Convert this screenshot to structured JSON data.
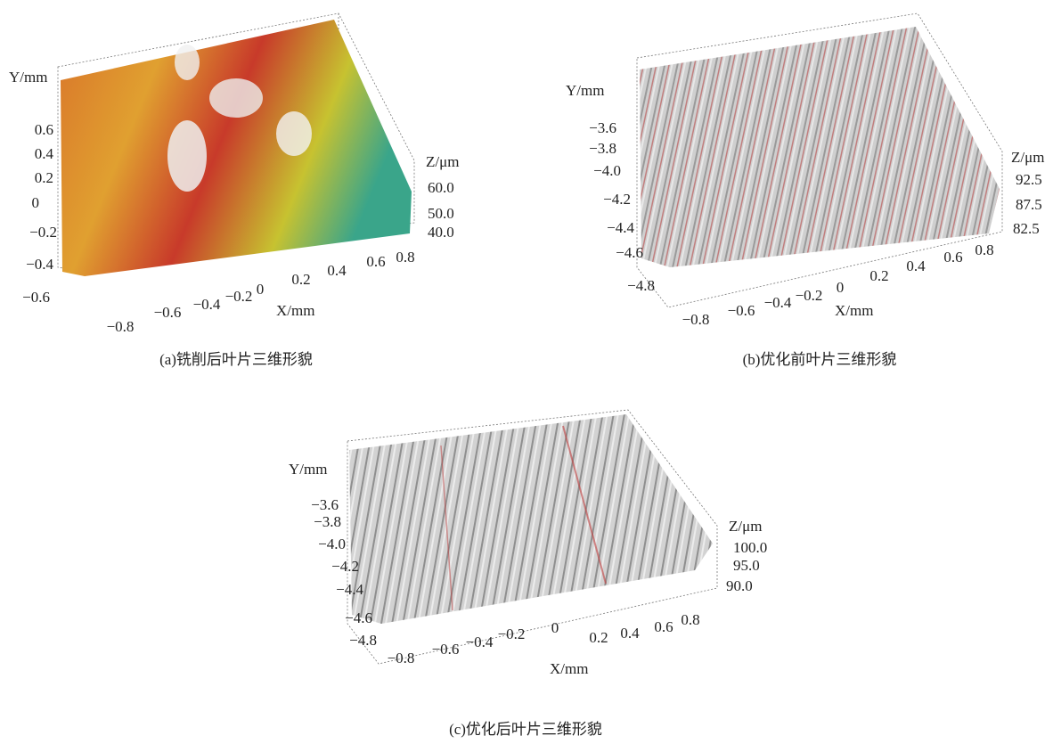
{
  "panels": [
    {
      "caption": "(a)铣削后叶片三维形貌",
      "y_axis": {
        "label": "Y/mm",
        "ticks": [
          "0.6",
          "0.4",
          "0.2",
          "0",
          "−0.2",
          "−0.4",
          "−0.6"
        ]
      },
      "x_axis": {
        "label": "X/mm",
        "ticks": [
          "−0.8",
          "−0.6",
          "−0.4",
          "−0.2",
          "0",
          "0.2",
          "0.4",
          "0.6",
          "0.8"
        ]
      },
      "z_axis": {
        "label": "Z/μm",
        "ticks": [
          "60.0",
          "50.0",
          "40.0"
        ]
      }
    },
    {
      "caption": "(b)优化前叶片三维形貌",
      "y_axis": {
        "label": "Y/mm",
        "ticks": [
          "−3.6",
          "−3.8",
          "−4.0",
          "−4.2",
          "−4.4",
          "−4.6",
          "−4.8"
        ]
      },
      "x_axis": {
        "label": "X/mm",
        "ticks": [
          "−0.8",
          "−0.6",
          "−0.4",
          "−0.2",
          "0",
          "0.2",
          "0.4",
          "0.6",
          "0.8"
        ]
      },
      "z_axis": {
        "label": "Z/μm",
        "ticks": [
          "92.5",
          "87.5",
          "82.5"
        ]
      }
    },
    {
      "caption": "(c)优化后叶片三维形貌",
      "y_axis": {
        "label": "Y/mm",
        "ticks": [
          "−3.6",
          "−3.8",
          "−4.0",
          "−4.2",
          "−4.4",
          "−4.6",
          "−4.8"
        ]
      },
      "x_axis": {
        "label": "X/mm",
        "ticks": [
          "−0.8",
          "−0.6",
          "−0.4",
          "−0.2",
          "0",
          "0.2",
          "0.4",
          "0.6",
          "0.8"
        ]
      },
      "z_axis": {
        "label": "Z/μm",
        "ticks": [
          "100.0",
          "95.0",
          "90.0"
        ]
      }
    }
  ]
}
